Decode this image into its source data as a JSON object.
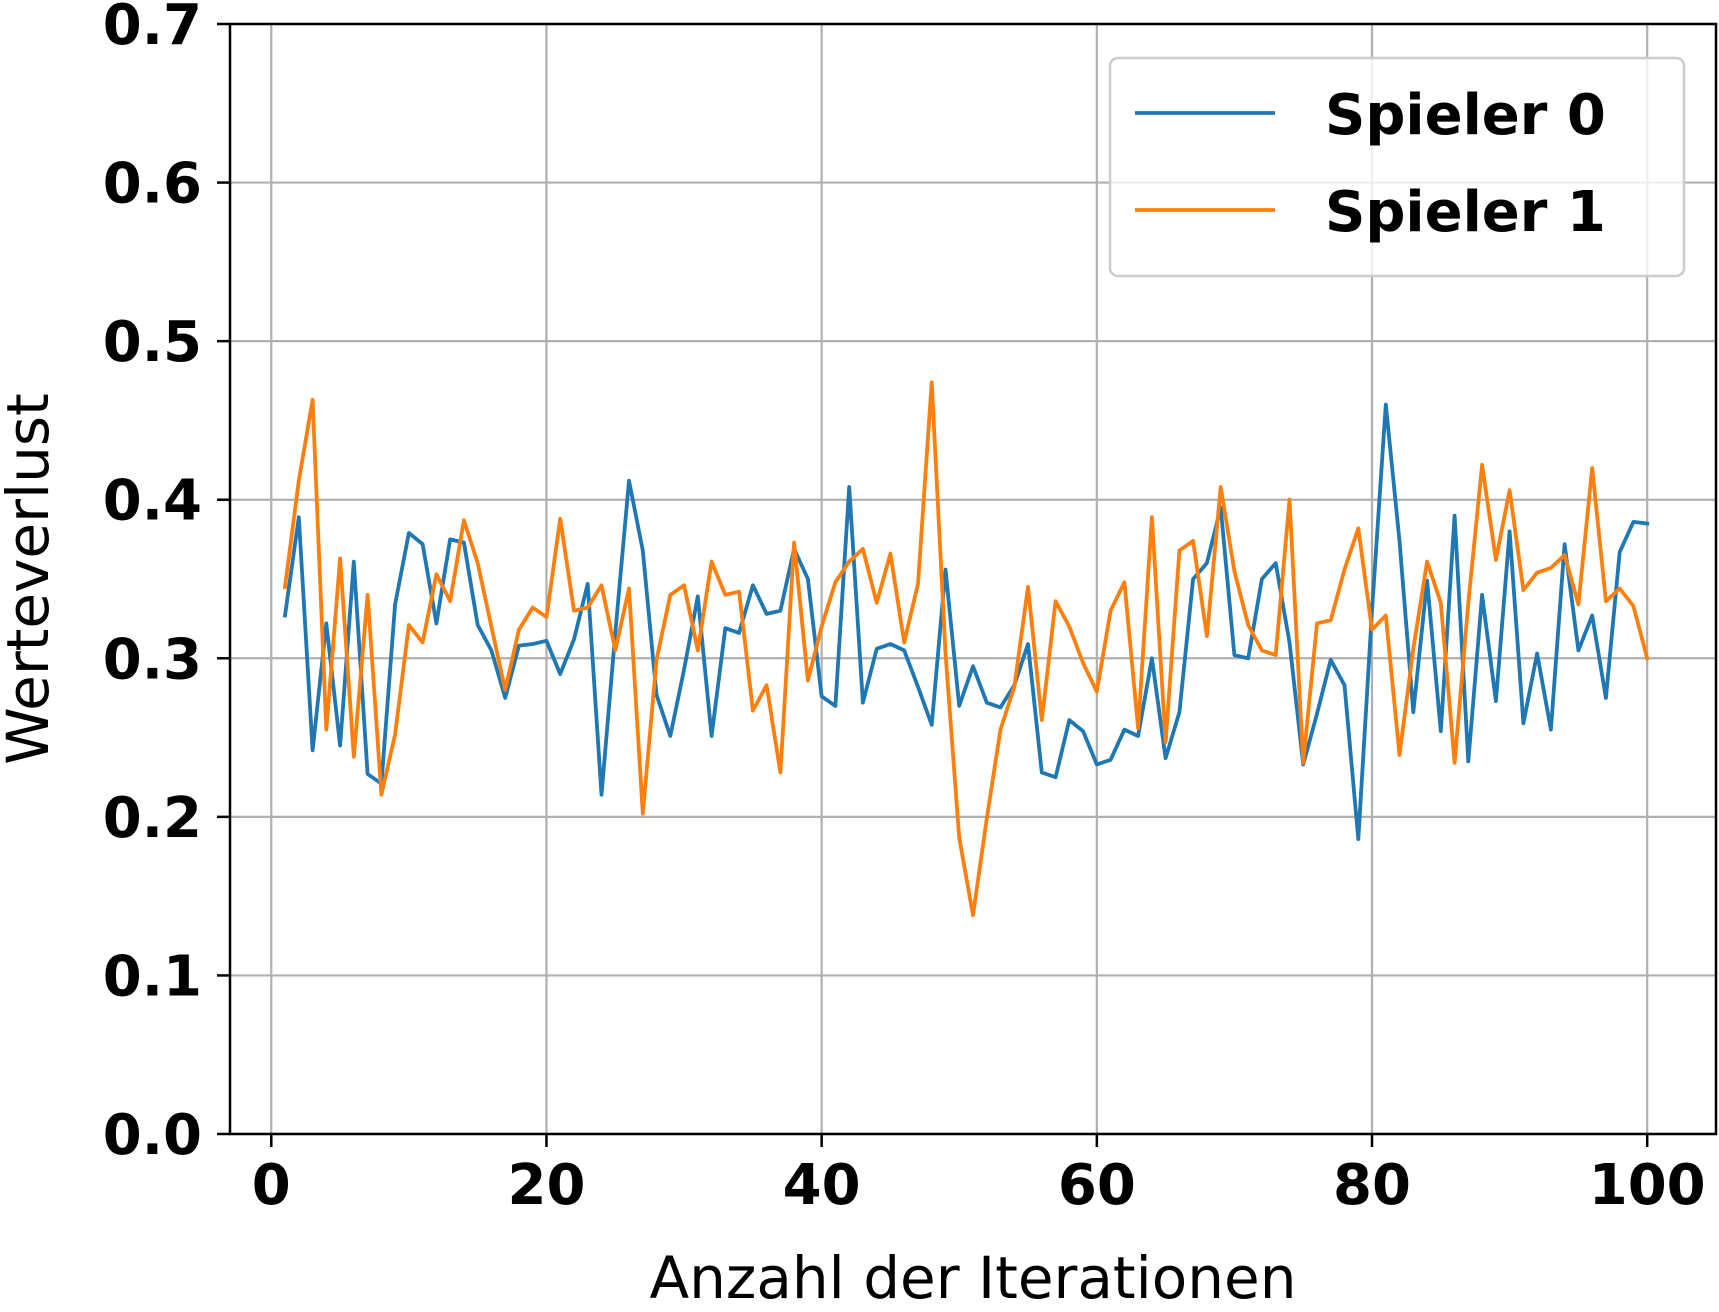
{
  "chart_data": {
    "type": "line",
    "xlabel": "Anzahl der Iterationen",
    "ylabel": "Werteverlust",
    "xlim": [
      -3,
      105
    ],
    "ylim": [
      0.0,
      0.7
    ],
    "xticks": [
      0,
      20,
      40,
      60,
      80,
      100
    ],
    "xtick_labels": [
      "0",
      "20",
      "40",
      "60",
      "80",
      "100"
    ],
    "yticks": [
      0.0,
      0.1,
      0.2,
      0.3,
      0.4,
      0.5,
      0.6,
      0.7
    ],
    "ytick_labels": [
      "0.0",
      "0.1",
      "0.2",
      "0.3",
      "0.4",
      "0.5",
      "0.6",
      "0.7"
    ],
    "grid": true,
    "legend_position": "top-right",
    "x": [
      1,
      2,
      3,
      4,
      5,
      6,
      7,
      8,
      9,
      10,
      11,
      12,
      13,
      14,
      15,
      16,
      17,
      18,
      19,
      20,
      21,
      22,
      23,
      24,
      25,
      26,
      27,
      28,
      29,
      30,
      31,
      32,
      33,
      34,
      35,
      36,
      37,
      38,
      39,
      40,
      41,
      42,
      43,
      44,
      45,
      46,
      47,
      48,
      49,
      50,
      51,
      52,
      53,
      54,
      55,
      56,
      57,
      58,
      59,
      60,
      61,
      62,
      63,
      64,
      65,
      66,
      67,
      68,
      69,
      70,
      71,
      72,
      73,
      74,
      75,
      76,
      77,
      78,
      79,
      80,
      81,
      82,
      83,
      84,
      85,
      86,
      87,
      88,
      89,
      90,
      91,
      92,
      93,
      94,
      95,
      96,
      97,
      98,
      99,
      100
    ],
    "series": [
      {
        "name": "Spieler 0",
        "color": "#1f77b4",
        "values": [
          0.327,
          0.389,
          0.242,
          0.322,
          0.245,
          0.361,
          0.227,
          0.221,
          0.334,
          0.379,
          0.372,
          0.322,
          0.375,
          0.373,
          0.321,
          0.305,
          0.275,
          0.308,
          0.309,
          0.311,
          0.29,
          0.312,
          0.347,
          0.214,
          0.316,
          0.412,
          0.368,
          0.277,
          0.251,
          0.293,
          0.339,
          0.251,
          0.319,
          0.316,
          0.346,
          0.328,
          0.33,
          0.369,
          0.35,
          0.276,
          0.27,
          0.408,
          0.272,
          0.306,
          0.309,
          0.305,
          0.282,
          0.258,
          0.356,
          0.27,
          0.295,
          0.272,
          0.269,
          0.283,
          0.309,
          0.228,
          0.225,
          0.261,
          0.254,
          0.233,
          0.236,
          0.255,
          0.251,
          0.3,
          0.237,
          0.266,
          0.35,
          0.36,
          0.395,
          0.302,
          0.3,
          0.35,
          0.36,
          0.31,
          0.233,
          0.265,
          0.299,
          0.283,
          0.186,
          0.33,
          0.46,
          0.374,
          0.266,
          0.349,
          0.254,
          0.39,
          0.235,
          0.34,
          0.273,
          0.38,
          0.259,
          0.303,
          0.255,
          0.372,
          0.305,
          0.327,
          0.275,
          0.367,
          0.386,
          0.385
        ]
      },
      {
        "name": "Spieler 1",
        "color": "#ff7f0e",
        "values": [
          0.345,
          0.412,
          0.463,
          0.255,
          0.363,
          0.238,
          0.34,
          0.214,
          0.252,
          0.321,
          0.31,
          0.353,
          0.336,
          0.387,
          0.36,
          0.32,
          0.28,
          0.318,
          0.332,
          0.326,
          0.388,
          0.33,
          0.332,
          0.346,
          0.305,
          0.344,
          0.202,
          0.299,
          0.34,
          0.346,
          0.305,
          0.361,
          0.34,
          0.342,
          0.267,
          0.283,
          0.228,
          0.373,
          0.286,
          0.32,
          0.348,
          0.361,
          0.369,
          0.335,
          0.366,
          0.31,
          0.347,
          0.474,
          0.303,
          0.187,
          0.138,
          0.199,
          0.255,
          0.282,
          0.345,
          0.261,
          0.336,
          0.32,
          0.297,
          0.279,
          0.33,
          0.348,
          0.256,
          0.389,
          0.247,
          0.368,
          0.374,
          0.314,
          0.408,
          0.355,
          0.321,
          0.305,
          0.302,
          0.4,
          0.234,
          0.322,
          0.324,
          0.356,
          0.382,
          0.318,
          0.327,
          0.239,
          0.306,
          0.361,
          0.335,
          0.234,
          0.335,
          0.422,
          0.362,
          0.406,
          0.343,
          0.354,
          0.357,
          0.365,
          0.334,
          0.42,
          0.336,
          0.344,
          0.333,
          0.3
        ]
      }
    ]
  }
}
